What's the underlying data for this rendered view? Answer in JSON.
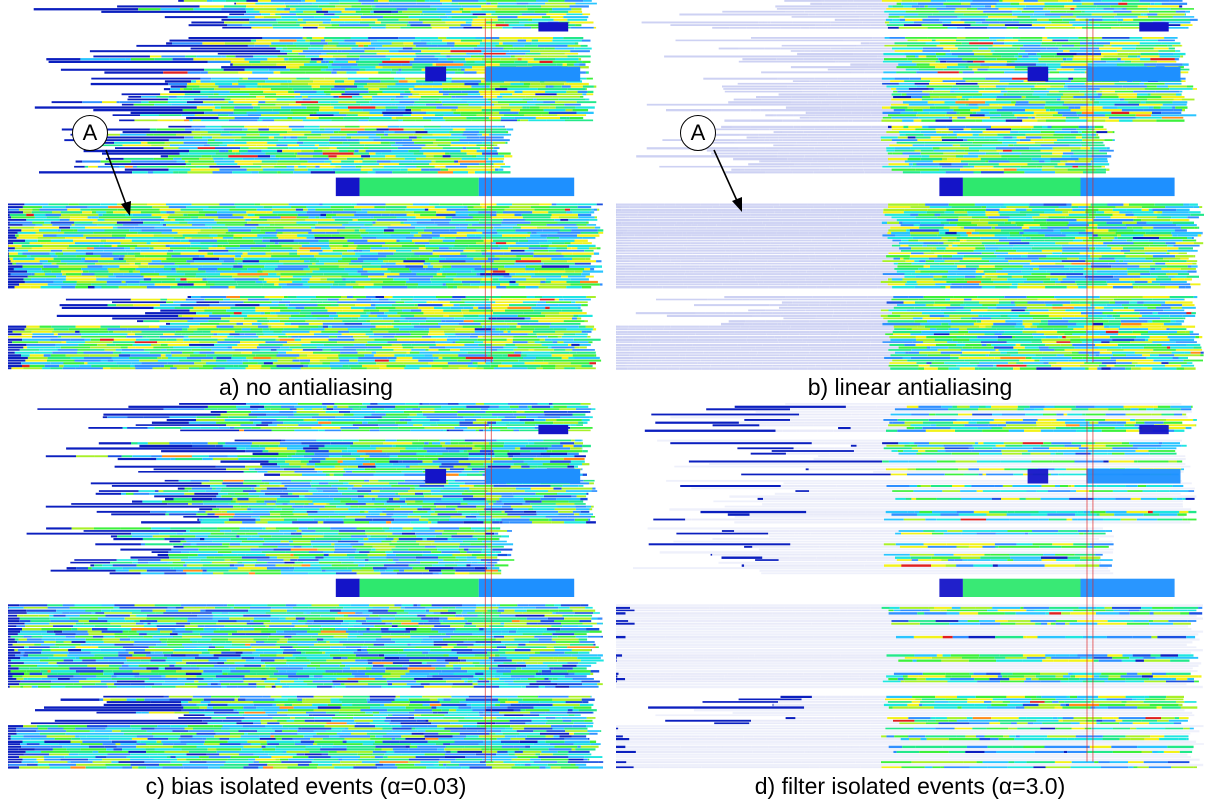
{
  "panels": [
    {
      "id": "a",
      "caption": "a) no antialiasing",
      "style": "raw",
      "marker": "A"
    },
    {
      "id": "b",
      "caption": "b) linear antialiasing",
      "style": "faded",
      "marker": "A"
    },
    {
      "id": "c",
      "caption": "c) bias isolated events (α=0.03)",
      "style": "biased",
      "marker": ""
    },
    {
      "id": "d",
      "caption": "d) filter isolated events (α=3.0)",
      "style": "filtered",
      "marker": ""
    }
  ],
  "colors": {
    "palette": [
      "#0b1fbf",
      "#1a4fe0",
      "#2f8fff",
      "#29c4ff",
      "#1fe6e0",
      "#22e88a",
      "#3cf03c",
      "#a8f028",
      "#f2f21a",
      "#ff8c1a",
      "#e01f1f"
    ],
    "faded_blue": "#c8ccf2",
    "block_dark": "#1414c8",
    "block_light": "#1e90ff",
    "block_green": "#2ee86e"
  }
}
